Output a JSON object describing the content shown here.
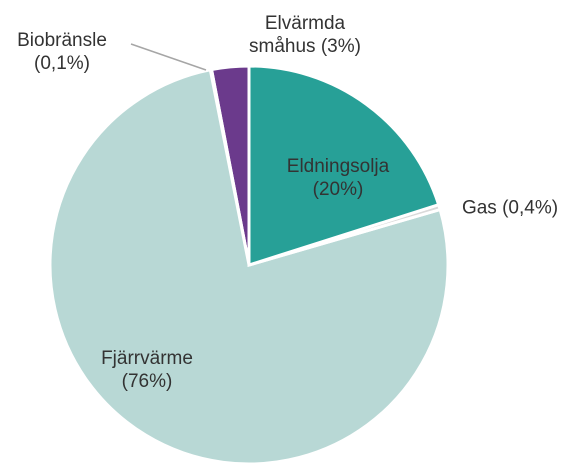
{
  "chart_data": {
    "type": "pie",
    "categories": [
      "Eldningsolja",
      "Gas",
      "Fjärrvärme",
      "Biobränsle",
      "Elvärmda småhus"
    ],
    "values": [
      20,
      0.4,
      76,
      0.1,
      3
    ],
    "value_labels": [
      "(20%)",
      "(0,4%)",
      "(76%)",
      "(0,1%)",
      "(3%)"
    ],
    "colors": [
      "#27a097",
      "#d9d9d9",
      "#b8d8d5",
      "#a6a6a6",
      "#6b3a8c"
    ]
  }
}
